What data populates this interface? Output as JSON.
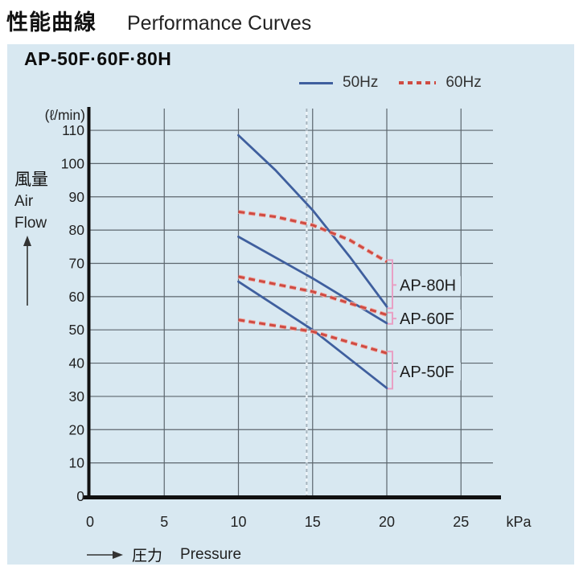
{
  "title": {
    "jp": "性能曲線",
    "en": "Performance Curves"
  },
  "panel": {
    "header": "AP-50F·60F·80H"
  },
  "legend": {
    "items": [
      {
        "label": "50Hz",
        "style": "solid",
        "color": "#3f5f9e"
      },
      {
        "label": "60Hz",
        "style": "dashed",
        "color": "#cf4b42"
      }
    ]
  },
  "axes": {
    "y_unit": "(ℓ/min)",
    "x_unit": "kPa",
    "ylabel_jp": "風量",
    "ylabel_en_line1": "Air",
    "ylabel_en_line2": "Flow",
    "xlabel_jp": "圧力",
    "xlabel_en": "Pressure"
  },
  "colors": {
    "panel_bg": "#d8e8f1",
    "line_50hz": "#3f5f9e",
    "line_60hz": "#cf4b42",
    "line_60hz_halo": "#f0aca6",
    "bracket": "#e8a0c4",
    "grid": "#5c666e",
    "axis": "#111111",
    "ref_line": "#a4b4be",
    "tick_text": "#222222"
  },
  "chart_data": {
    "type": "line",
    "title": "AP-50F·60F·80H Performance Curves",
    "xlabel": "圧力 Pressure (kPa)",
    "ylabel": "風量 Air Flow (ℓ/min)",
    "xlim": [
      0,
      27.5
    ],
    "ylim": [
      0,
      116
    ],
    "x_ticks": [
      0,
      5,
      10,
      15,
      20,
      25
    ],
    "y_ticks": [
      0,
      10,
      20,
      30,
      40,
      50,
      60,
      70,
      80,
      90,
      100,
      110
    ],
    "grid": true,
    "legend_position": "top",
    "reference_line_x": 14.6,
    "series": [
      {
        "name": "AP-80H 50Hz",
        "model": "AP-80H",
        "freq": "50Hz",
        "style": "solid",
        "points": [
          [
            10,
            108.5
          ],
          [
            12.5,
            98
          ],
          [
            15,
            86
          ],
          [
            17.5,
            72
          ],
          [
            20,
            57
          ]
        ]
      },
      {
        "name": "AP-80H 60Hz",
        "model": "AP-80H",
        "freq": "60Hz",
        "style": "dashed",
        "points": [
          [
            10,
            85.5
          ],
          [
            12.5,
            84
          ],
          [
            15,
            81.5
          ],
          [
            17.5,
            77
          ],
          [
            20,
            70.5
          ]
        ]
      },
      {
        "name": "AP-60F 50Hz",
        "model": "AP-60F",
        "freq": "50Hz",
        "style": "solid",
        "points": [
          [
            10,
            78
          ],
          [
            15,
            65.5
          ],
          [
            20,
            52
          ]
        ]
      },
      {
        "name": "AP-60F 60Hz",
        "model": "AP-60F",
        "freq": "60Hz",
        "style": "dashed",
        "points": [
          [
            10,
            66
          ],
          [
            15,
            61.5
          ],
          [
            20,
            54.5
          ]
        ]
      },
      {
        "name": "AP-50F 50Hz",
        "model": "AP-50F",
        "freq": "50Hz",
        "style": "solid",
        "points": [
          [
            10,
            64.5
          ],
          [
            15,
            50
          ],
          [
            20,
            32.5
          ]
        ]
      },
      {
        "name": "AP-50F 60Hz",
        "model": "AP-50F",
        "freq": "60Hz",
        "style": "dashed",
        "points": [
          [
            10,
            53
          ],
          [
            15,
            49.5
          ],
          [
            20,
            43
          ]
        ]
      }
    ],
    "annotations": [
      {
        "label": "AP-80H",
        "from": 56.5,
        "to": 71.0,
        "label_y": 63.5
      },
      {
        "label": "AP-60F",
        "from": 51.8,
        "to": 55.2,
        "label_y": 53.4
      },
      {
        "label": "AP-50F",
        "from": 32.3,
        "to": 43.5,
        "label_y": 37.5
      }
    ]
  }
}
